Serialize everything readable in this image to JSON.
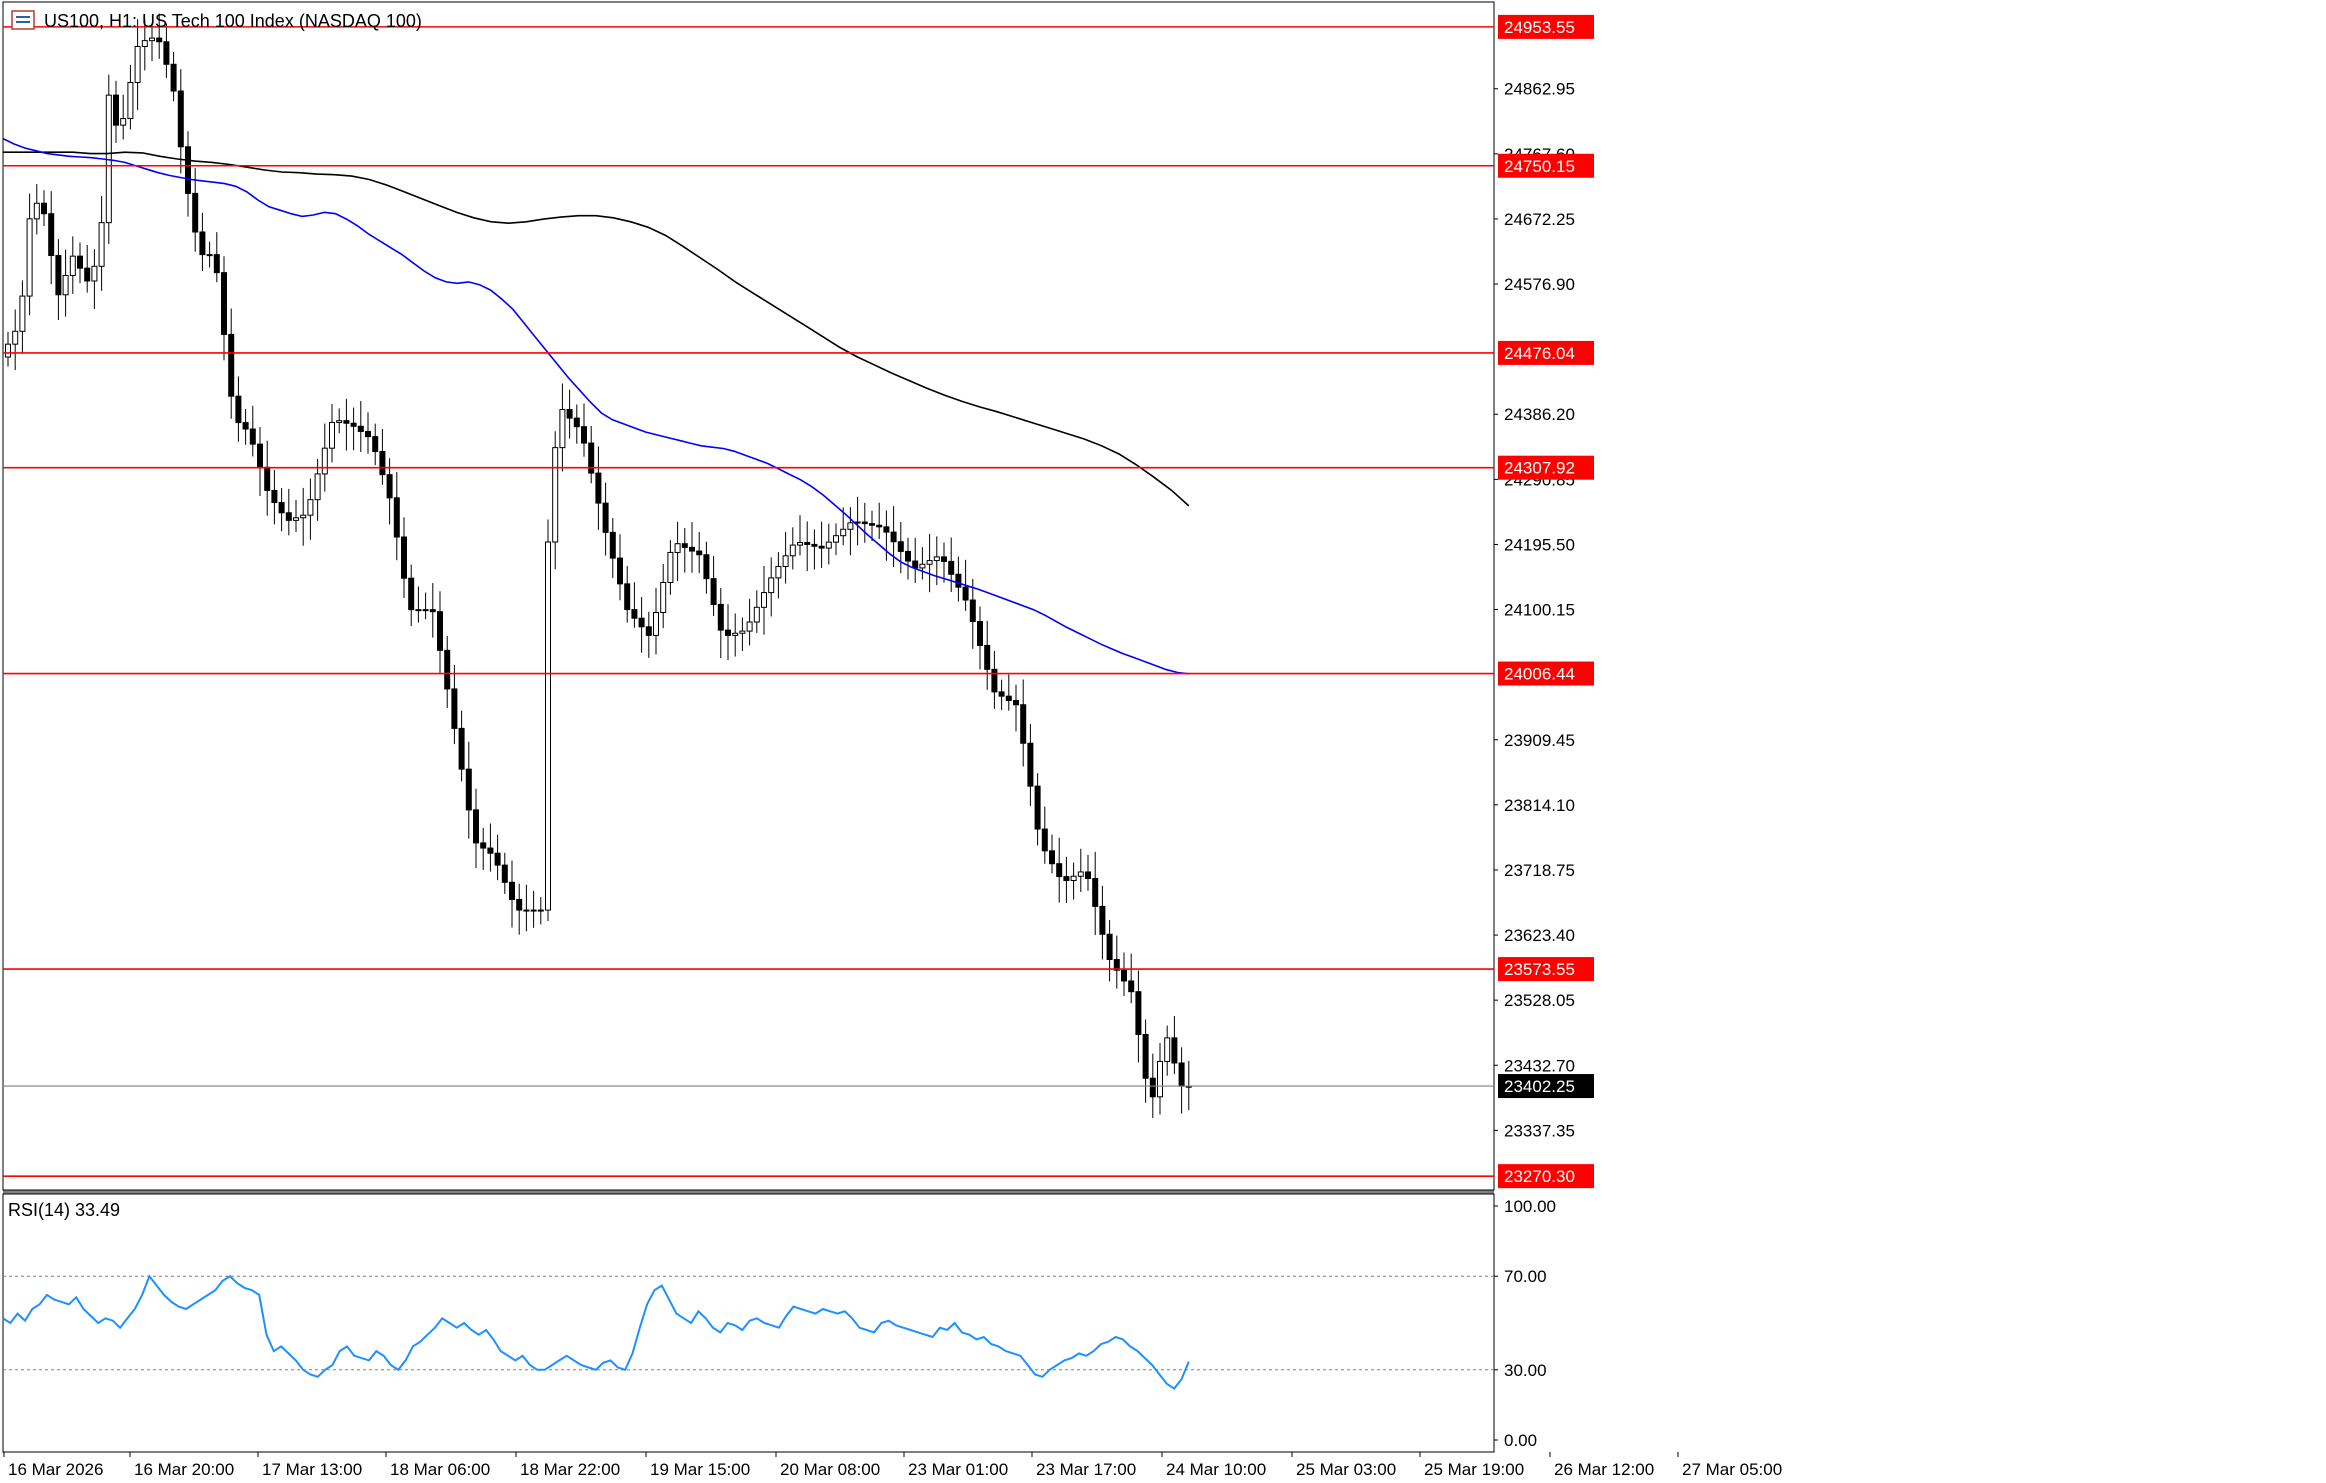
{
  "header": {
    "title": "US100, H1:  US Tech 100 Index (NASDAQ 100)",
    "icon": "chart-window-icon"
  },
  "colors": {
    "background": "#ffffff",
    "candle_bull_body": "#ffffff",
    "candle_bear_body": "#000000",
    "candle_outline": "#000000",
    "level_line": "#ff0000",
    "level_label_bg": "#ff0000",
    "level_label_text": "#ffffff",
    "current_price_bg": "#000000",
    "ma_fast": "#0000ff",
    "ma_slow": "#000000",
    "rsi_line": "#1e90ff",
    "axis_text": "#000000",
    "dotted_line": "#808080"
  },
  "chart_data": [
    {
      "type": "candlestick",
      "symbol": "US100",
      "timeframe": "H1",
      "title": "US100, H1:  US Tech 100 Index (NASDAQ 100)",
      "ylim": [
        23250,
        24990
      ],
      "y_ticks": [
        "24862.95",
        "24767.60",
        "24672.25",
        "24576.90",
        "24386.20",
        "24290.85",
        "24195.50",
        "24100.15",
        "23909.45",
        "23814.10",
        "23718.75",
        "23623.40",
        "23528.05",
        "23432.70",
        "23337.35"
      ],
      "x_ticks": [
        "16 Mar 2026",
        "16 Mar 20:00",
        "17 Mar 13:00",
        "18 Mar 06:00",
        "18 Mar 22:00",
        "19 Mar 15:00",
        "20 Mar 08:00",
        "23 Mar 01:00",
        "23 Mar 17:00",
        "24 Mar 10:00",
        "25 Mar 03:00",
        "25 Mar 19:00",
        "26 Mar 12:00",
        "27 Mar 05:00"
      ],
      "levels": [
        "24953.55",
        "24750.15",
        "24476.04",
        "24307.92",
        "24006.44",
        "23573.55",
        "23270.30"
      ],
      "current_price": "23402.25",
      "series": [
        {
          "type": "line",
          "values": [
            24790,
            24782,
            24776,
            24772,
            24768,
            24766,
            24764,
            24763,
            24762,
            24760,
            24758,
            24755,
            24750,
            24745,
            24740,
            24736,
            24733,
            24730,
            24728,
            24726,
            24724,
            24720,
            24712,
            24700,
            24690,
            24685,
            24680,
            24676,
            24678,
            24682,
            24680,
            24672,
            24662,
            24650,
            24640,
            24630,
            24620,
            24608,
            24596,
            24586,
            24580,
            24578,
            24580,
            24576,
            24568,
            24555,
            24540,
            24520,
            24500,
            24480,
            24460,
            24440,
            24422,
            24404,
            24388,
            24378,
            24372,
            24366,
            24360,
            24356,
            24352,
            24348,
            24344,
            24340,
            24338,
            24336,
            24332,
            24326,
            24320,
            24314,
            24306,
            24298,
            24290,
            24280,
            24268,
            24254,
            24240,
            24225,
            24210,
            24196,
            24182,
            24170,
            24162,
            24156,
            24150,
            24145,
            24140,
            24135,
            24130,
            24124,
            24118,
            24112,
            24106,
            24100,
            24092,
            24083,
            24074,
            24066,
            24058,
            24050,
            24043,
            24036,
            24030,
            24024,
            24018,
            24012,
            24008,
            24006
          ]
        },
        {
          "type": "line",
          "values": [
            24770,
            24770,
            24770,
            24770,
            24770,
            24768,
            24768,
            24770,
            24769,
            24764,
            24760,
            24757,
            24755,
            24752,
            24748,
            24744,
            24741,
            24740,
            24738,
            24737,
            24735,
            24730,
            24722,
            24712,
            24702,
            24692,
            24682,
            24674,
            24668,
            24666,
            24668,
            24672,
            24675,
            24677,
            24677,
            24674,
            24668,
            24660,
            24648,
            24632,
            24615,
            24598,
            24580,
            24564,
            24548,
            24532,
            24516,
            24500,
            24484,
            24470,
            24458,
            24446,
            24435,
            24424,
            24414,
            24405,
            24397,
            24390,
            24382,
            24374,
            24366,
            24358,
            24350,
            24340,
            24328,
            24312,
            24294,
            24275,
            24252
          ]
        },
        {
          "type": "line",
          "values": [
            52,
            50,
            54,
            51,
            56,
            58,
            62,
            60,
            59,
            58,
            61,
            56,
            53,
            50,
            52,
            51,
            48,
            52,
            56,
            62,
            70,
            66,
            62,
            59,
            57,
            56,
            58,
            60,
            62,
            64,
            68,
            70,
            67,
            65,
            64,
            62,
            45,
            38,
            40,
            37,
            34,
            30,
            28,
            27,
            30,
            32,
            38,
            40,
            36,
            35,
            34,
            38,
            36,
            32,
            30,
            34,
            40,
            42,
            45,
            48,
            52,
            50,
            48,
            50,
            47,
            45,
            47,
            43,
            38,
            36,
            34,
            36,
            32,
            30,
            30,
            32,
            34,
            36,
            34,
            32,
            31,
            30,
            33,
            34,
            31,
            30,
            37,
            48,
            58,
            64,
            66,
            60,
            54,
            52,
            50,
            55,
            52,
            48,
            46,
            50,
            49,
            47,
            51,
            52,
            50,
            49,
            48,
            53,
            57,
            56,
            55,
            54,
            56,
            55,
            54,
            55,
            52,
            48,
            47,
            46,
            50,
            51,
            49,
            48,
            47,
            46,
            45,
            44,
            48,
            47,
            50,
            46,
            45,
            43,
            44,
            41,
            40,
            38,
            37,
            36,
            32,
            28,
            27,
            30,
            32,
            34,
            35,
            37,
            36,
            38,
            41,
            42,
            44,
            43,
            40,
            38,
            35,
            32,
            28,
            24,
            22,
            26,
            33.49
          ]
        }
      ]
    },
    {
      "type": "line",
      "title": "RSI(14) 33.49",
      "ylim": [
        0,
        100
      ],
      "y_ticks": [
        "100.00",
        "70.00",
        "30.00",
        "0.00"
      ],
      "levels": [
        70,
        30
      ]
    }
  ]
}
